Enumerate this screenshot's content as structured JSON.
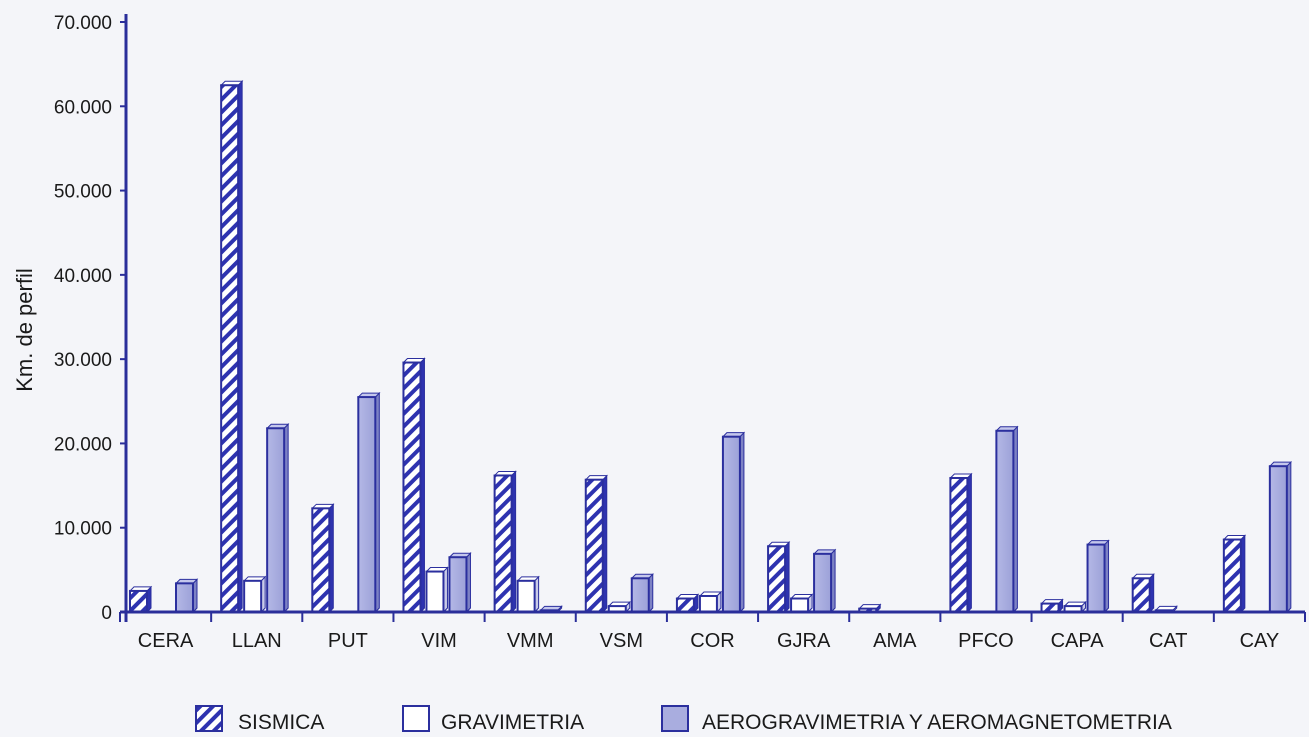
{
  "chart_data": {
    "type": "bar",
    "ylabel": "Km. de perfil",
    "ylim": [
      0,
      70000
    ],
    "yticks": [
      0,
      10000,
      20000,
      30000,
      40000,
      50000,
      60000,
      70000
    ],
    "ytick_labels": [
      "0",
      "10.000",
      "20.000",
      "30.000",
      "40.000",
      "50.000",
      "60.000",
      "70.000"
    ],
    "categories": [
      "CERA",
      "LLAN",
      "PUT",
      "VIM",
      "VMM",
      "VSM",
      "COR",
      "GJRA",
      "AMA",
      "PFCO",
      "CAPA",
      "CAT",
      "CAY"
    ],
    "series": [
      {
        "name": "SISMICA",
        "values": [
          2500,
          62500,
          12300,
          29600,
          16200,
          15700,
          1600,
          7800,
          400,
          15900,
          1000,
          4000,
          8600
        ]
      },
      {
        "name": "GRAVIMETRIA",
        "values": [
          0,
          3700,
          0,
          4800,
          3700,
          700,
          1900,
          1600,
          0,
          0,
          700,
          200,
          0
        ]
      },
      {
        "name": "AEROGRAVIMETRIA Y AEROMAGNETOMETRIA",
        "values": [
          3400,
          21800,
          25500,
          6500,
          200,
          4000,
          20800,
          6900,
          0,
          21500,
          8000,
          0,
          17300
        ]
      }
    ],
    "grid": false,
    "legend_position": "bottom"
  },
  "colors": {
    "sismica_fill": "#ffffff",
    "sismica_hatch": "#2e33b0",
    "gravimetria_fill": "#ffffff",
    "aero_fill": "#a9addf",
    "outline": "#2b2f9e",
    "axis": "#2a2e9a",
    "text": "#1a1a1a"
  }
}
